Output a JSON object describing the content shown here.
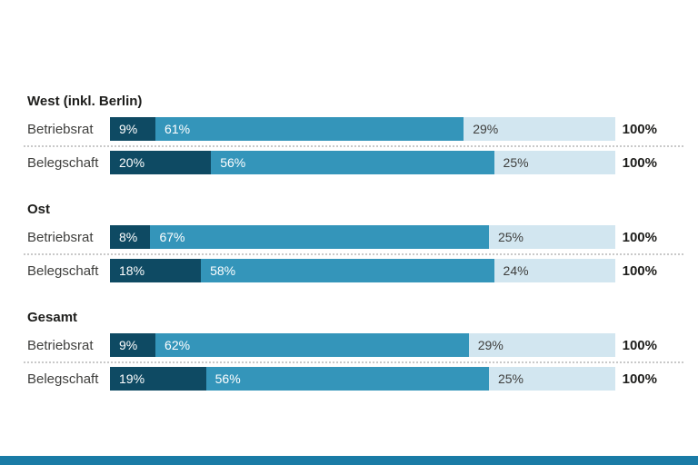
{
  "chart_data": {
    "type": "bar",
    "orientation": "horizontal",
    "stacked": true,
    "xlim": [
      0,
      100
    ],
    "axes_hidden": true,
    "legend": "none",
    "unit": "%",
    "colors": {
      "segment_dark": "#0e4a63",
      "segment_medium": "#3495ba",
      "segment_light": "#d2e6f0",
      "footer_accent": "#1a7ba6"
    },
    "groups": [
      {
        "title": "West (inkl. Berlin)",
        "rows": [
          {
            "label": "Betriebsrat",
            "segments": [
              9,
              61,
              29
            ],
            "segment_labels": [
              "9%",
              "61%",
              "29%"
            ],
            "total_label": "100%"
          },
          {
            "label": "Belegschaft",
            "segments": [
              20,
              56,
              25
            ],
            "segment_labels": [
              "20%",
              "56%",
              "25%"
            ],
            "total_label": "100%"
          }
        ]
      },
      {
        "title": "Ost",
        "rows": [
          {
            "label": "Betriebsrat",
            "segments": [
              8,
              67,
              25
            ],
            "segment_labels": [
              "8%",
              "67%",
              "25%"
            ],
            "total_label": "100%"
          },
          {
            "label": "Belegschaft",
            "segments": [
              18,
              58,
              24
            ],
            "segment_labels": [
              "18%",
              "58%",
              "24%"
            ],
            "total_label": "100%"
          }
        ]
      },
      {
        "title": "Gesamt",
        "rows": [
          {
            "label": "Betriebsrat",
            "segments": [
              9,
              62,
              29
            ],
            "segment_labels": [
              "9%",
              "62%",
              "29%"
            ],
            "total_label": "100%"
          },
          {
            "label": "Belegschaft",
            "segments": [
              19,
              56,
              25
            ],
            "segment_labels": [
              "19%",
              "56%",
              "25%"
            ],
            "total_label": "100%"
          }
        ]
      }
    ]
  }
}
